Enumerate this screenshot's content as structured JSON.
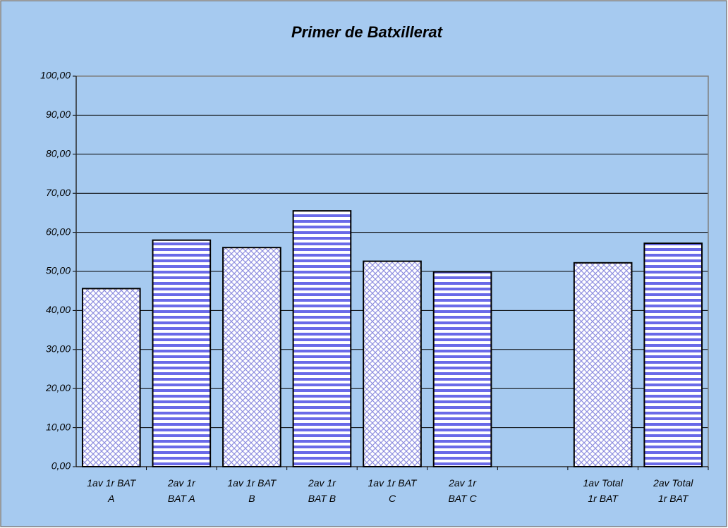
{
  "chart_data": {
    "type": "bar",
    "title": "Primer de Batxillerat",
    "categories": [
      "1av 1r BAT\nA",
      "2av 1r\nBAT A",
      "1av 1r BAT\nB",
      "2av 1r\nBAT B",
      "1av 1r BAT\nC",
      "2av 1r\nBAT C",
      null,
      "1av Total\n1r BAT",
      "2av Total\n1r BAT"
    ],
    "values": [
      45.6,
      58.0,
      56.1,
      65.5,
      52.6,
      49.9,
      null,
      52.2,
      57.2
    ],
    "bar_patterns": [
      "crosshatch",
      "stripes",
      "crosshatch",
      "stripes",
      "crosshatch",
      "stripes",
      null,
      "crosshatch",
      "stripes"
    ],
    "color": "#6a6ae8",
    "ylim": [
      0,
      100
    ],
    "yticks": [
      {
        "value": 0,
        "label": "0,00"
      },
      {
        "value": 10,
        "label": "10,00"
      },
      {
        "value": 20,
        "label": "20,00"
      },
      {
        "value": 30,
        "label": "30,00"
      },
      {
        "value": 40,
        "label": "40,00"
      },
      {
        "value": 50,
        "label": "50,00"
      },
      {
        "value": 60,
        "label": "60,00"
      },
      {
        "value": 70,
        "label": "70,00"
      },
      {
        "value": 80,
        "label": "80,00"
      },
      {
        "value": 90,
        "label": "90,00"
      },
      {
        "value": 100,
        "label": "100,00"
      }
    ],
    "grid": true
  }
}
